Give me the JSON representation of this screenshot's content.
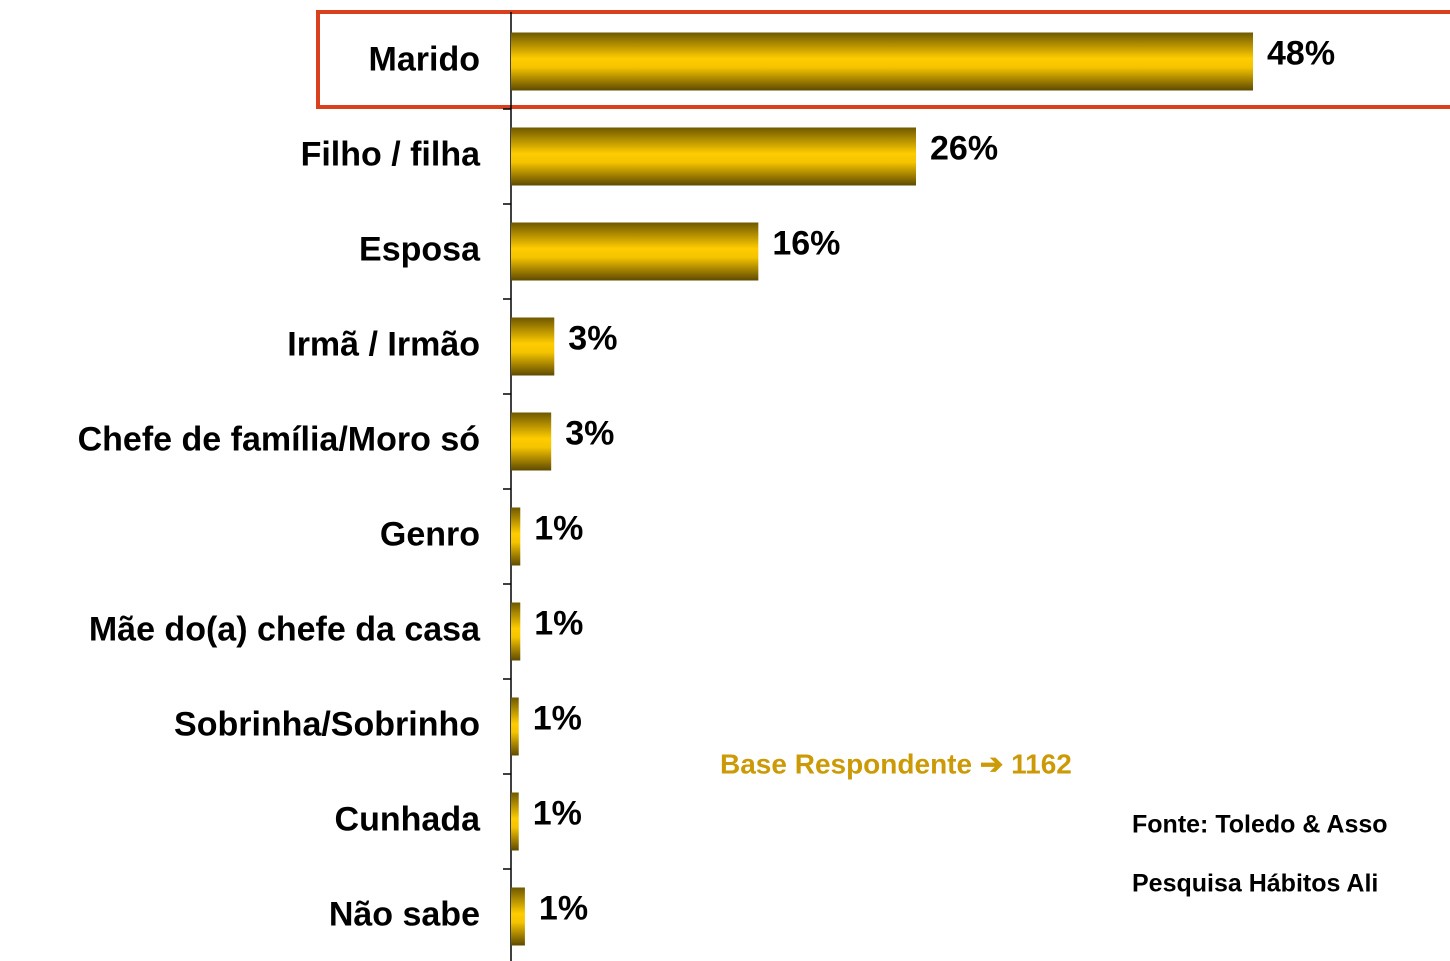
{
  "chart_data": {
    "type": "bar",
    "orientation": "horizontal",
    "categories": [
      "Marido",
      "Filho / filha",
      "Esposa",
      "Irmã / Irmão",
      "Chefe de família/Moro só",
      "Genro",
      "Mãe do(a) chefe da casa",
      "Sobrinha/Sobrinho",
      "Cunhada",
      "Não sabe"
    ],
    "values": [
      48,
      26.2,
      16,
      2.8,
      2.6,
      0.6,
      0.6,
      0.5,
      0.5,
      0.9
    ],
    "value_labels": [
      "48%",
      "26%",
      "16%",
      "3%",
      "3%",
      "1%",
      "1%",
      "1%",
      "1%",
      "1%"
    ],
    "color": "#ffcc00",
    "note": "Base Respondente ➔ 1162",
    "source": [
      "Fonte: Toledo & Asso",
      "Pesquisa Hábitos Ali"
    ]
  }
}
